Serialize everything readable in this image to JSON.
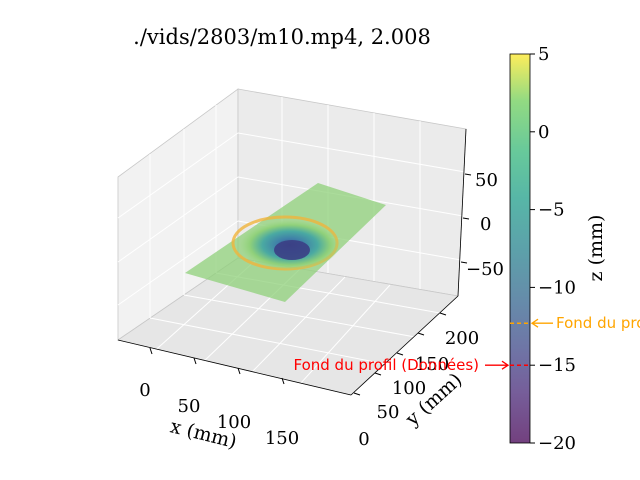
{
  "chart_data": {
    "type": "surface3d",
    "title": "./vids/2803/m10.mp4, 2.008",
    "xlabel": "x (mm)",
    "ylabel": "y (mm)",
    "zlabel": "z (mm)",
    "x_ticks": [
      "0",
      "50",
      "100",
      "150"
    ],
    "y_ticks": [
      "0",
      "50",
      "100",
      "150",
      "200"
    ],
    "z_ticks": [
      "−50",
      "0",
      "50"
    ],
    "colorbar": {
      "label": "z (mm)",
      "colormap": "viridis",
      "range": [
        -20,
        5
      ],
      "ticks": [
        "5",
        "0",
        "−5",
        "−10",
        "−15",
        "−20"
      ],
      "tick_values": [
        5,
        0,
        -5,
        -10,
        -15,
        -20
      ]
    },
    "surface": {
      "flat_level": 0,
      "depression_min_z": -17
    },
    "annotations": [
      {
        "text": "Fond du profil (Données)",
        "z": -15,
        "color": "#ff0000"
      },
      {
        "text": "Fond du profil",
        "z": -12.3,
        "color": "#ffa500"
      }
    ]
  }
}
